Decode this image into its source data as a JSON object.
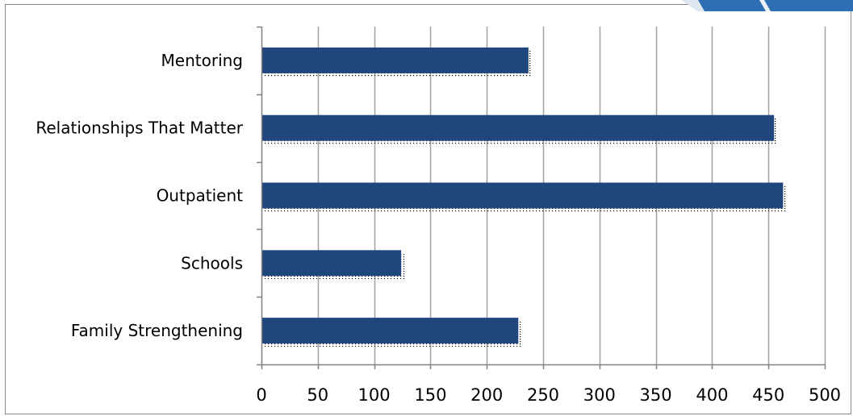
{
  "chart_data": {
    "type": "bar",
    "orientation": "horizontal",
    "categories": [
      "Mentoring",
      "Relationships That Matter",
      "Outpatient",
      "Schools",
      "Family Strengthening"
    ],
    "values": [
      237,
      455,
      463,
      124,
      228
    ],
    "xlim": [
      0,
      500
    ],
    "xticks": [
      0,
      50,
      100,
      150,
      200,
      250,
      300,
      350,
      400,
      450,
      500
    ],
    "grid": "vertical",
    "legend": "none",
    "colors": {
      "bar": "#1f477d",
      "grid": "#a0a0a0",
      "axis": "#808080",
      "frame": "#8a8a8a",
      "dots": "#000000",
      "accent": "#2f6eb5"
    }
  }
}
